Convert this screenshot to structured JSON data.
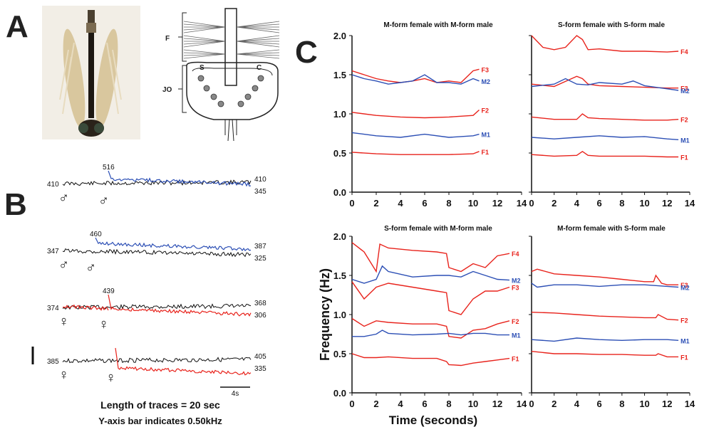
{
  "panel_letters": {
    "a": "A",
    "b": "B",
    "c": "C"
  },
  "schematic_labels": {
    "f": "F",
    "jo": "JO",
    "s": "S",
    "c": "C"
  },
  "panel_b": {
    "footnote_1": "Length of traces = 20 sec",
    "footnote_2": "Y-axis bar indicates 0.50kHz",
    "scale_label": "4s",
    "rows": [
      {
        "start": "410",
        "peak": "516",
        "end_top": "410",
        "end_bottom": "345",
        "sym1": "♂",
        "sym2": "♂"
      },
      {
        "start": "347",
        "peak": "460",
        "end_top": "387",
        "end_bottom": "325",
        "sym1": "♂",
        "sym2": "♂"
      },
      {
        "start": "374",
        "peak": "439",
        "end_top": "368",
        "end_bottom": "306",
        "sym1": "♀",
        "sym2": "♀"
      },
      {
        "start": "385",
        "peak": "",
        "end_top": "405",
        "end_bottom": "335",
        "sym1": "♀",
        "sym2": "♀"
      }
    ]
  },
  "panel_c": {
    "ylabel": "Frequency (Hz)",
    "xlabel": "Time (seconds)"
  },
  "colors": {
    "female": "#e8231c",
    "male": "#2c4fb5",
    "overlap": "#4caf50",
    "grey": "#9a9a9a",
    "trace_black": "#111111"
  },
  "chart_data": [
    {
      "type": "line",
      "title": "M-form female with M-form male",
      "xlim": [
        0,
        14
      ],
      "ylim": [
        0,
        2
      ],
      "xticks": [
        "0",
        "2",
        "4",
        "6",
        "8",
        "10",
        "12",
        "14"
      ],
      "yticks": [
        "0.0",
        "0.5",
        "1.0",
        "1.5",
        "2.0"
      ],
      "series": [
        {
          "name": "F3",
          "color": "#e8231c",
          "x": [
            0,
            1,
            2,
            3,
            4,
            5,
            6,
            7,
            8,
            9,
            10,
            10.5
          ],
          "y": [
            1.55,
            1.5,
            1.45,
            1.42,
            1.4,
            1.42,
            1.45,
            1.4,
            1.42,
            1.4,
            1.55,
            1.57
          ]
        },
        {
          "name": "M2",
          "color": "#2c4fb5",
          "x": [
            0,
            1,
            2,
            3,
            4,
            5,
            6,
            7,
            8,
            9,
            10,
            10.5
          ],
          "y": [
            1.5,
            1.45,
            1.42,
            1.38,
            1.4,
            1.42,
            1.5,
            1.4,
            1.4,
            1.38,
            1.45,
            1.42
          ]
        },
        {
          "name": "F2",
          "color": "#e8231c",
          "x": [
            0,
            2,
            4,
            6,
            8,
            10,
            10.5
          ],
          "y": [
            1.02,
            0.98,
            0.96,
            0.95,
            0.96,
            0.98,
            1.05
          ]
        },
        {
          "name": "M1",
          "color": "#2c4fb5",
          "x": [
            0,
            2,
            4,
            6,
            8,
            10,
            10.5
          ],
          "y": [
            0.76,
            0.72,
            0.7,
            0.74,
            0.7,
            0.72,
            0.74
          ]
        },
        {
          "name": "F1",
          "color": "#e8231c",
          "x": [
            0,
            2,
            4,
            6,
            8,
            10,
            10.5
          ],
          "y": [
            0.51,
            0.49,
            0.48,
            0.48,
            0.48,
            0.49,
            0.52
          ]
        }
      ]
    },
    {
      "type": "line",
      "title": "S-form female with S-form male",
      "xlim": [
        0,
        14
      ],
      "ylim": [
        0,
        2
      ],
      "xticks": [
        "0",
        "2",
        "4",
        "6",
        "8",
        "10",
        "12",
        "14"
      ],
      "yticks": [],
      "series": [
        {
          "name": "F4",
          "color": "#e8231c",
          "x": [
            0,
            1,
            2,
            3,
            4,
            4.5,
            5,
            6,
            8,
            10,
            12,
            13
          ],
          "y": [
            2.0,
            1.85,
            1.82,
            1.85,
            2.0,
            1.95,
            1.82,
            1.83,
            1.8,
            1.8,
            1.79,
            1.8
          ]
        },
        {
          "name": "F3",
          "color": "#e8231c",
          "x": [
            0,
            2,
            4,
            4.5,
            5,
            6,
            8,
            10,
            12,
            13
          ],
          "y": [
            1.38,
            1.35,
            1.48,
            1.45,
            1.38,
            1.36,
            1.35,
            1.34,
            1.33,
            1.33
          ]
        },
        {
          "name": "M2",
          "color": "#2c4fb5",
          "x": [
            0,
            2,
            3,
            4,
            5,
            6,
            8,
            9,
            10,
            12,
            13
          ],
          "y": [
            1.35,
            1.38,
            1.45,
            1.38,
            1.37,
            1.4,
            1.38,
            1.42,
            1.36,
            1.32,
            1.3
          ]
        },
        {
          "name": "F2",
          "color": "#e8231c",
          "x": [
            0,
            2,
            4,
            4.5,
            5,
            6,
            8,
            10,
            12,
            13
          ],
          "y": [
            0.96,
            0.93,
            0.93,
            1.0,
            0.95,
            0.94,
            0.93,
            0.92,
            0.92,
            0.93
          ]
        },
        {
          "name": "M1",
          "color": "#2c4fb5",
          "x": [
            0,
            2,
            4,
            6,
            8,
            10,
            12,
            13
          ],
          "y": [
            0.7,
            0.68,
            0.7,
            0.72,
            0.7,
            0.71,
            0.68,
            0.67
          ]
        },
        {
          "name": "F1",
          "color": "#e8231c",
          "x": [
            0,
            2,
            4,
            4.5,
            5,
            6,
            8,
            10,
            12,
            13
          ],
          "y": [
            0.48,
            0.46,
            0.47,
            0.52,
            0.47,
            0.46,
            0.46,
            0.46,
            0.45,
            0.45
          ]
        }
      ]
    },
    {
      "type": "line",
      "title": "S-form female with M-form male",
      "xlim": [
        0,
        14
      ],
      "ylim": [
        0,
        2
      ],
      "xticks": [
        "0",
        "2",
        "4",
        "6",
        "8",
        "10",
        "12",
        "14"
      ],
      "yticks": [
        "0.0",
        "0.5",
        "1.0",
        "1.5",
        "2.0"
      ],
      "series": [
        {
          "name": "F4",
          "color": "#e8231c",
          "x": [
            0,
            1,
            2,
            2.3,
            3,
            5,
            7,
            7.8,
            8,
            9,
            10,
            11,
            12,
            13
          ],
          "y": [
            1.92,
            1.8,
            1.55,
            1.9,
            1.85,
            1.82,
            1.8,
            1.78,
            1.6,
            1.55,
            1.65,
            1.6,
            1.75,
            1.78
          ]
        },
        {
          "name": "M2",
          "color": "#2c4fb5",
          "x": [
            0,
            1,
            2,
            2.5,
            3,
            5,
            7,
            8,
            9,
            10,
            11,
            12,
            13
          ],
          "y": [
            1.45,
            1.4,
            1.45,
            1.62,
            1.55,
            1.48,
            1.5,
            1.5,
            1.48,
            1.55,
            1.5,
            1.45,
            1.44
          ]
        },
        {
          "name": "F3",
          "color": "#e8231c",
          "x": [
            0,
            1,
            2,
            3,
            5,
            7,
            7.8,
            8,
            9,
            10,
            11,
            12,
            13
          ],
          "y": [
            1.42,
            1.2,
            1.35,
            1.4,
            1.35,
            1.3,
            1.28,
            1.05,
            1.0,
            1.2,
            1.3,
            1.3,
            1.35
          ]
        },
        {
          "name": "F2",
          "color": "#e8231c",
          "x": [
            0,
            1,
            2,
            3,
            5,
            7,
            7.8,
            8,
            9,
            10,
            11,
            12,
            13
          ],
          "y": [
            0.95,
            0.85,
            0.92,
            0.9,
            0.88,
            0.88,
            0.85,
            0.72,
            0.7,
            0.8,
            0.82,
            0.88,
            0.92
          ]
        },
        {
          "name": "M1",
          "color": "#2c4fb5",
          "x": [
            0,
            1,
            2,
            2.5,
            3,
            5,
            7,
            8,
            9,
            10,
            11,
            12,
            13
          ],
          "y": [
            0.72,
            0.72,
            0.75,
            0.8,
            0.76,
            0.74,
            0.75,
            0.76,
            0.74,
            0.76,
            0.76,
            0.74,
            0.74
          ]
        },
        {
          "name": "F1",
          "color": "#e8231c",
          "x": [
            0,
            1,
            2,
            3,
            5,
            7,
            7.8,
            8,
            9,
            10,
            11,
            12,
            13
          ],
          "y": [
            0.5,
            0.45,
            0.45,
            0.46,
            0.44,
            0.44,
            0.4,
            0.36,
            0.35,
            0.38,
            0.4,
            0.42,
            0.44
          ]
        }
      ]
    },
    {
      "type": "line",
      "title": "M-form female with S-form male",
      "xlim": [
        0,
        14
      ],
      "ylim": [
        0,
        2
      ],
      "xticks": [
        "0",
        "2",
        "4",
        "6",
        "8",
        "10",
        "12",
        "14"
      ],
      "yticks": [],
      "series": [
        {
          "name": "F3",
          "color": "#e8231c",
          "x": [
            0,
            0.5,
            2,
            4,
            6,
            8,
            10,
            10.8,
            11,
            11.5,
            12,
            13
          ],
          "y": [
            1.55,
            1.58,
            1.52,
            1.5,
            1.48,
            1.45,
            1.42,
            1.42,
            1.5,
            1.4,
            1.38,
            1.38
          ]
        },
        {
          "name": "M2",
          "color": "#2c4fb5",
          "x": [
            0,
            0.5,
            2,
            4,
            6,
            8,
            10,
            11,
            12,
            13
          ],
          "y": [
            1.4,
            1.35,
            1.38,
            1.38,
            1.36,
            1.38,
            1.38,
            1.37,
            1.36,
            1.35
          ]
        },
        {
          "name": "F2",
          "color": "#e8231c",
          "x": [
            0,
            2,
            4,
            6,
            8,
            10,
            11,
            11.2,
            12,
            13
          ],
          "y": [
            1.03,
            1.02,
            1.0,
            0.98,
            0.97,
            0.96,
            0.96,
            1.0,
            0.94,
            0.93
          ]
        },
        {
          "name": "M1",
          "color": "#2c4fb5",
          "x": [
            0,
            2,
            4,
            6,
            8,
            10,
            12,
            13
          ],
          "y": [
            0.68,
            0.66,
            0.7,
            0.68,
            0.67,
            0.68,
            0.68,
            0.67
          ]
        },
        {
          "name": "F1",
          "color": "#e8231c",
          "x": [
            0,
            2,
            4,
            6,
            8,
            10,
            11,
            11.2,
            12,
            13
          ],
          "y": [
            0.53,
            0.5,
            0.5,
            0.49,
            0.49,
            0.48,
            0.48,
            0.5,
            0.46,
            0.46
          ]
        }
      ]
    }
  ]
}
